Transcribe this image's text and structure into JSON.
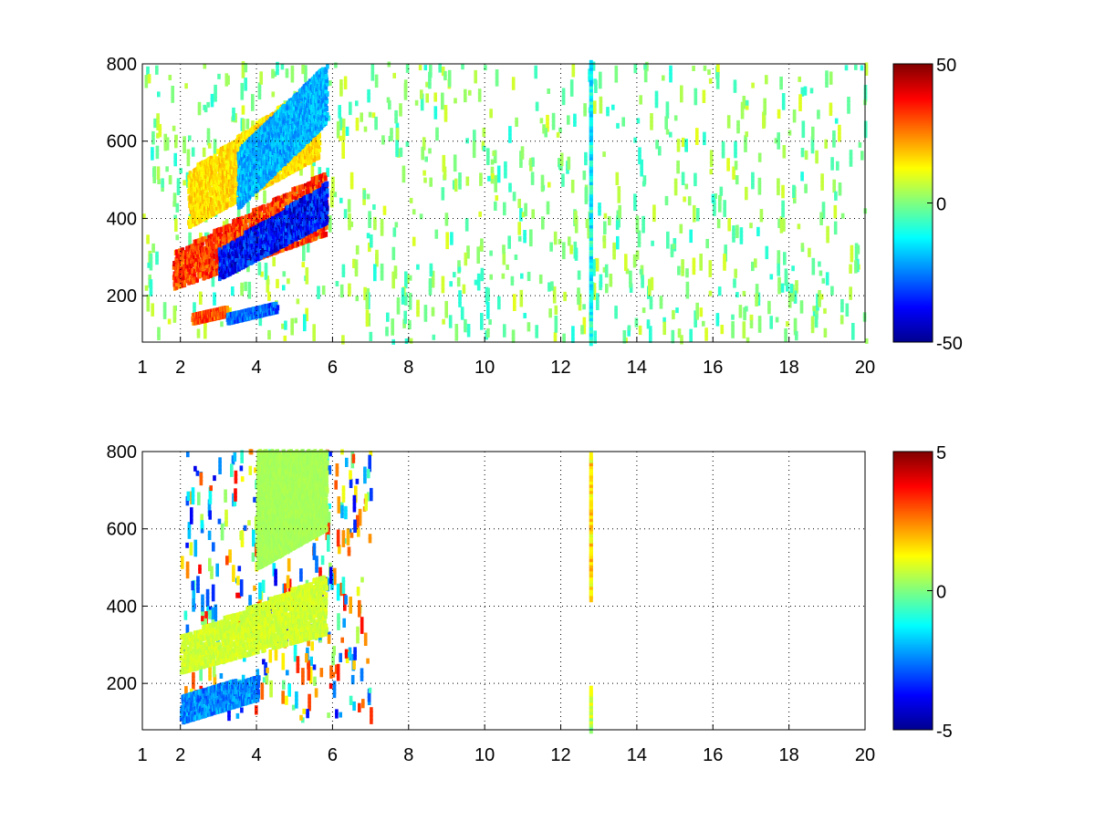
{
  "chart_data": [
    {
      "type": "heatmap",
      "title": "",
      "xlabel": "",
      "ylabel": "",
      "xlim": [
        1,
        20
      ],
      "ylim": [
        80,
        800
      ],
      "xticks": [
        1,
        2,
        4,
        6,
        8,
        10,
        12,
        14,
        16,
        18,
        20
      ],
      "yticks": [
        200,
        400,
        600,
        800
      ],
      "grid": true,
      "colormap": "jet",
      "colorbar": {
        "range": [
          -50,
          50
        ],
        "ticks": [
          50,
          0,
          -50
        ],
        "tick_labels": [
          "50",
          "0",
          "-50"
        ]
      },
      "features": [
        {
          "kind": "band",
          "x": [
            1.8,
            5.8
          ],
          "y_start": [
            220,
            360
          ],
          "y_end": [
            290,
            500
          ],
          "value": 40
        },
        {
          "kind": "band",
          "x": [
            3.0,
            5.8
          ],
          "y_start": [
            245,
            390
          ],
          "y_end": [
            300,
            470
          ],
          "value": -45
        },
        {
          "kind": "band",
          "x": [
            2.2,
            5.6
          ],
          "y_start": [
            380,
            560
          ],
          "y_end": [
            500,
            740
          ],
          "value": 20
        },
        {
          "kind": "band",
          "x": [
            3.5,
            5.8
          ],
          "y_start": [
            430,
            650
          ],
          "y_end": [
            560,
            780
          ],
          "value": -25
        },
        {
          "kind": "band",
          "x": [
            2.3,
            3.2
          ],
          "y_start": [
            130,
            150
          ],
          "y_end": [
            130,
            150
          ],
          "value": 38
        },
        {
          "kind": "band",
          "x": [
            3.2,
            4.5
          ],
          "y_start": [
            130,
            160
          ],
          "y_end": [
            130,
            160
          ],
          "value": -35
        },
        {
          "kind": "stripe",
          "x": 12.78,
          "y": [
            80,
            800
          ],
          "value": -12
        }
      ],
      "noise": {
        "x": [
          1,
          20
        ],
        "y": [
          80,
          800
        ],
        "values": [
          -10,
          10
        ]
      }
    },
    {
      "type": "heatmap",
      "title": "",
      "xlabel": "",
      "ylabel": "",
      "xlim": [
        1,
        20
      ],
      "ylim": [
        80,
        800
      ],
      "xticks": [
        1,
        2,
        4,
        6,
        8,
        10,
        12,
        14,
        16,
        18,
        20
      ],
      "yticks": [
        200,
        400,
        600,
        800
      ],
      "grid": true,
      "colormap": "jet",
      "colorbar": {
        "range": [
          -5,
          5
        ],
        "ticks": [
          5,
          0,
          -5
        ],
        "tick_labels": [
          "5",
          "0",
          "-5"
        ]
      },
      "features": [
        {
          "kind": "band",
          "x": [
            2.0,
            5.8
          ],
          "y_start": [
            230,
            330
          ],
          "y_end": [
            300,
            460
          ],
          "value": 1
        },
        {
          "kind": "band",
          "x": [
            2.0,
            4.0
          ],
          "y_start": [
            100,
            160
          ],
          "y_end": [
            150,
            200
          ],
          "value": -3
        },
        {
          "kind": "band",
          "x": [
            4.0,
            5.8
          ],
          "y_start": [
            500,
            600
          ],
          "y_end": [
            780,
            800
          ],
          "value": 0.5
        },
        {
          "kind": "stripe",
          "x": 12.78,
          "y": [
            420,
            790
          ],
          "value": 1.5
        },
        {
          "kind": "stripe",
          "x": 12.78,
          "y": [
            80,
            190
          ],
          "value": 0.5
        }
      ],
      "noise": {
        "x": [
          2,
          7
        ],
        "y": [
          100,
          800
        ],
        "values": [
          -4,
          4
        ]
      }
    }
  ]
}
